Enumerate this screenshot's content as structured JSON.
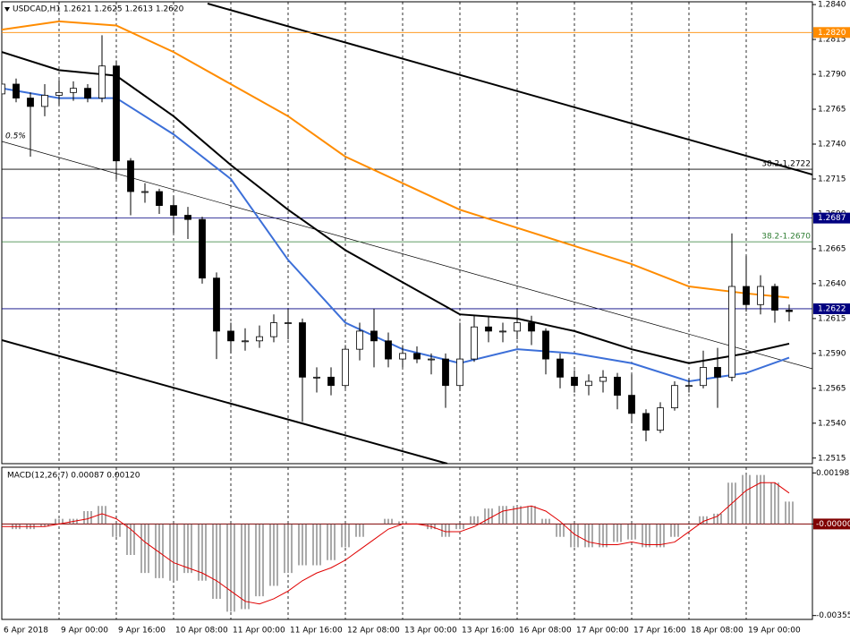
{
  "chart_data": [
    {
      "type": "candlestick",
      "title": "USDCAD,H1 1.2621 1.2625 1.2613 1.2620",
      "annotation": "0.5%",
      "categories": [
        "6 Apr 2018",
        null,
        null,
        null,
        "9 Apr 00:00",
        null,
        null,
        null,
        "9 Apr 16:00",
        null,
        null,
        null,
        "10 Apr 08:00",
        null,
        null,
        null,
        "11 Apr 00:00",
        null,
        null,
        null,
        "11 Apr 16:00",
        null,
        null,
        null,
        "12 Apr 08:00",
        null,
        null,
        null,
        "13 Apr 00:00",
        null,
        null,
        null,
        "13 Apr 16:00",
        null,
        null,
        null,
        "16 Apr 08:00",
        null,
        null,
        null,
        "17 Apr 00:00",
        null,
        null,
        null,
        "17 Apr 16:00",
        null,
        null,
        null,
        "18 Apr 08:00",
        null,
        null,
        null,
        "19 Apr 00:00",
        null,
        null,
        null
      ],
      "open": [
        1.2776,
        1.2783,
        1.2773,
        1.2767,
        1.2775,
        1.2777,
        1.278,
        1.2773,
        1.2796,
        1.2728,
        1.2706,
        1.2706,
        1.2696,
        1.2689,
        1.2686,
        1.2644,
        1.2606,
        1.2599,
        1.2599,
        1.2602,
        1.2612,
        1.2612,
        1.2573,
        1.2573,
        1.2567,
        1.2593,
        1.2606,
        1.2599,
        1.2586,
        1.259,
        1.2586,
        1.2586,
        1.2567,
        1.2586,
        1.2609,
        1.2606,
        1.2606,
        1.2612,
        1.2606,
        1.2586,
        1.2573,
        1.2567,
        1.257,
        1.2573,
        1.256,
        1.2547,
        1.2535,
        1.2551,
        1.2567,
        1.2567,
        1.258,
        1.2573,
        1.2638,
        1.2625,
        1.2638,
        1.2621
      ],
      "high": [
        1.2789,
        1.2787,
        1.2777,
        1.2783,
        1.2786,
        1.2785,
        1.2783,
        1.2818,
        1.28,
        1.273,
        1.2712,
        1.2708,
        1.2703,
        1.2695,
        1.2688,
        1.2648,
        1.2612,
        1.2608,
        1.261,
        1.2618,
        1.2622,
        1.2615,
        1.258,
        1.258,
        1.2596,
        1.2612,
        1.2622,
        1.2605,
        1.2596,
        1.2595,
        1.259,
        1.259,
        1.2612,
        1.2617,
        1.2616,
        1.2612,
        1.2622,
        1.2617,
        1.2608,
        1.259,
        1.2578,
        1.2575,
        1.2578,
        1.2576,
        1.2575,
        1.255,
        1.2555,
        1.257,
        1.2572,
        1.2592,
        1.2594,
        1.2676,
        1.266,
        1.2646,
        1.264,
        1.2625
      ],
      "low": [
        1.2767,
        1.277,
        1.2731,
        1.276,
        1.2768,
        1.2771,
        1.277,
        1.277,
        1.2715,
        1.2689,
        1.2698,
        1.269,
        1.2676,
        1.2672,
        1.264,
        1.2586,
        1.259,
        1.2592,
        1.2594,
        1.2598,
        1.26,
        1.2541,
        1.2562,
        1.256,
        1.2565,
        1.2585,
        1.258,
        1.258,
        1.258,
        1.2583,
        1.2575,
        1.2551,
        1.2563,
        1.2584,
        1.2598,
        1.2598,
        1.26,
        1.2596,
        1.2575,
        1.2565,
        1.2562,
        1.256,
        1.2562,
        1.255,
        1.254,
        1.2527,
        1.2533,
        1.2549,
        1.2562,
        1.2565,
        1.2551,
        1.257,
        1.262,
        1.2618,
        1.2612,
        1.2613
      ],
      "close": [
        1.2783,
        1.2773,
        1.2767,
        1.2775,
        1.2777,
        1.278,
        1.2773,
        1.2796,
        1.2728,
        1.2706,
        1.2706,
        1.2696,
        1.2689,
        1.2686,
        1.2644,
        1.2606,
        1.2599,
        1.2599,
        1.2602,
        1.2612,
        1.2612,
        1.2573,
        1.2573,
        1.2567,
        1.2593,
        1.2606,
        1.2599,
        1.2586,
        1.259,
        1.2586,
        1.2586,
        1.2567,
        1.2586,
        1.2609,
        1.2606,
        1.2606,
        1.2612,
        1.2606,
        1.2586,
        1.2573,
        1.2567,
        1.257,
        1.2573,
        1.256,
        1.2547,
        1.2535,
        1.2551,
        1.2567,
        1.2567,
        1.258,
        1.2573,
        1.2638,
        1.2625,
        1.2638,
        1.2621,
        1.262
      ],
      "up_color": "#ffffff",
      "down_color": "#000000",
      "moving_averages": [
        {
          "color": "#ff8c00",
          "x": [
            0,
            4,
            8,
            12,
            16,
            20,
            24,
            28,
            32,
            36,
            40,
            44,
            48,
            52,
            55
          ],
          "values": [
            1.2822,
            1.2828,
            1.2825,
            1.2806,
            1.2783,
            1.276,
            1.2731,
            1.2712,
            1.2693,
            1.268,
            1.2667,
            1.2654,
            1.2638,
            1.2633,
            1.263
          ]
        },
        {
          "color": "#000000",
          "x": [
            0,
            4,
            8,
            12,
            16,
            20,
            24,
            28,
            32,
            36,
            40,
            44,
            48,
            52,
            55
          ],
          "values": [
            1.2806,
            1.2793,
            1.2789,
            1.276,
            1.2725,
            1.2693,
            1.2664,
            1.2641,
            1.2618,
            1.2615,
            1.2606,
            1.2593,
            1.2583,
            1.259,
            1.2597
          ]
        },
        {
          "color": "#3c6fd8",
          "x": [
            0,
            4,
            8,
            12,
            16,
            20,
            24,
            28,
            32,
            36,
            40,
            44,
            48,
            52,
            55
          ],
          "values": [
            1.278,
            1.2773,
            1.2773,
            1.2747,
            1.2715,
            1.2657,
            1.2612,
            1.2593,
            1.2583,
            1.2593,
            1.259,
            1.2583,
            1.257,
            1.2576,
            1.2587
          ]
        }
      ],
      "levels": [
        {
          "value": 1.282,
          "label": "1.2820",
          "color": "#ff8c00",
          "box": true
        },
        {
          "value": 1.2687,
          "color": "#000080",
          "box": true
        },
        {
          "value": 1.2622,
          "color": "#000080",
          "box": true
        },
        {
          "value": 1.2722,
          "label": "38.2-1.2722",
          "color": "#000000",
          "box": false
        },
        {
          "value": 1.267,
          "label": "38.2-1.2670",
          "color": "#2e7d32",
          "box": false
        }
      ],
      "ylim": [
        1.2511,
        1.2842
      ],
      "yticks": [
        {
          "value": 1.284,
          "label": "1.2840"
        },
        1.2815,
        {
          "value": 1.279,
          "label": "1.2790"
        },
        1.2765,
        {
          "value": 1.274,
          "label": "1.2740"
        },
        1.2715,
        {
          "value": 1.269,
          "label": "1.2690"
        },
        1.2665,
        {
          "value": 1.264,
          "label": "1.2640"
        },
        1.2615,
        {
          "value": 1.259,
          "label": "1.2590"
        },
        1.2565,
        {
          "value": 1.254,
          "label": "1.2540"
        },
        1.2515
      ],
      "grid": true
    },
    {
      "type": "macd",
      "title": "MACD(12,26,7) 0.00087 0.00120",
      "values": [
        0,
        -0.0002,
        -0.0002,
        -0.0001,
        0.0002,
        0.0002,
        0.0005,
        0.0007,
        -0.0005,
        -0.0012,
        -0.0019,
        -0.0021,
        -0.0022,
        -0.0019,
        -0.0022,
        -0.0029,
        -0.0034,
        -0.0033,
        -0.0028,
        -0.0024,
        -0.0019,
        -0.0016,
        -0.0016,
        -0.0014,
        -0.0009,
        -0.0005,
        0,
        0.0002,
        0.0001,
        0,
        -0.0002,
        -0.0005,
        -0.0002,
        0.0003,
        0.0006,
        0.0007,
        0.0007,
        0.0007,
        0.0002,
        -0.0005,
        -0.0009,
        -0.0009,
        -0.0009,
        -0.0007,
        -0.0006,
        -0.0009,
        -0.0009,
        -0.0005,
        0,
        0.0003,
        0.0004,
        0.0016,
        0.0019,
        0.0019,
        0.0016,
        0.00087
      ],
      "signal": [
        -0.0001,
        -0.0001,
        -0.0001,
        -0.0001,
        0,
        0.0001,
        0.0002,
        0.0004,
        0.0002,
        -0.0002,
        -0.0007,
        -0.0011,
        -0.0015,
        -0.0017,
        -0.0019,
        -0.0022,
        -0.0026,
        -0.003,
        -0.0031,
        -0.0029,
        -0.0026,
        -0.0022,
        -0.0019,
        -0.0017,
        -0.0014,
        -0.001,
        -0.0006,
        -0.0002,
        0,
        0,
        -0.0001,
        -0.0003,
        -0.0003,
        -0.0001,
        0.0002,
        0.0005,
        0.0006,
        0.0007,
        0.0005,
        0.0001,
        -0.0004,
        -0.0007,
        -0.0008,
        -0.0008,
        -0.0007,
        -0.0008,
        -0.0008,
        -0.0007,
        -0.0003,
        0.0001,
        0.0003,
        0.0008,
        0.0013,
        0.0016,
        0.0016,
        0.0012
      ],
      "color": "#555555",
      "signal_color": "#e00000",
      "zero_color": "#800000",
      "ylim": [
        -0.0037,
        0.0022
      ],
      "yticks": [
        0.00198,
        {
          "value": 0,
          "label": "-0.00000"
        },
        -0.00355
      ]
    }
  ]
}
